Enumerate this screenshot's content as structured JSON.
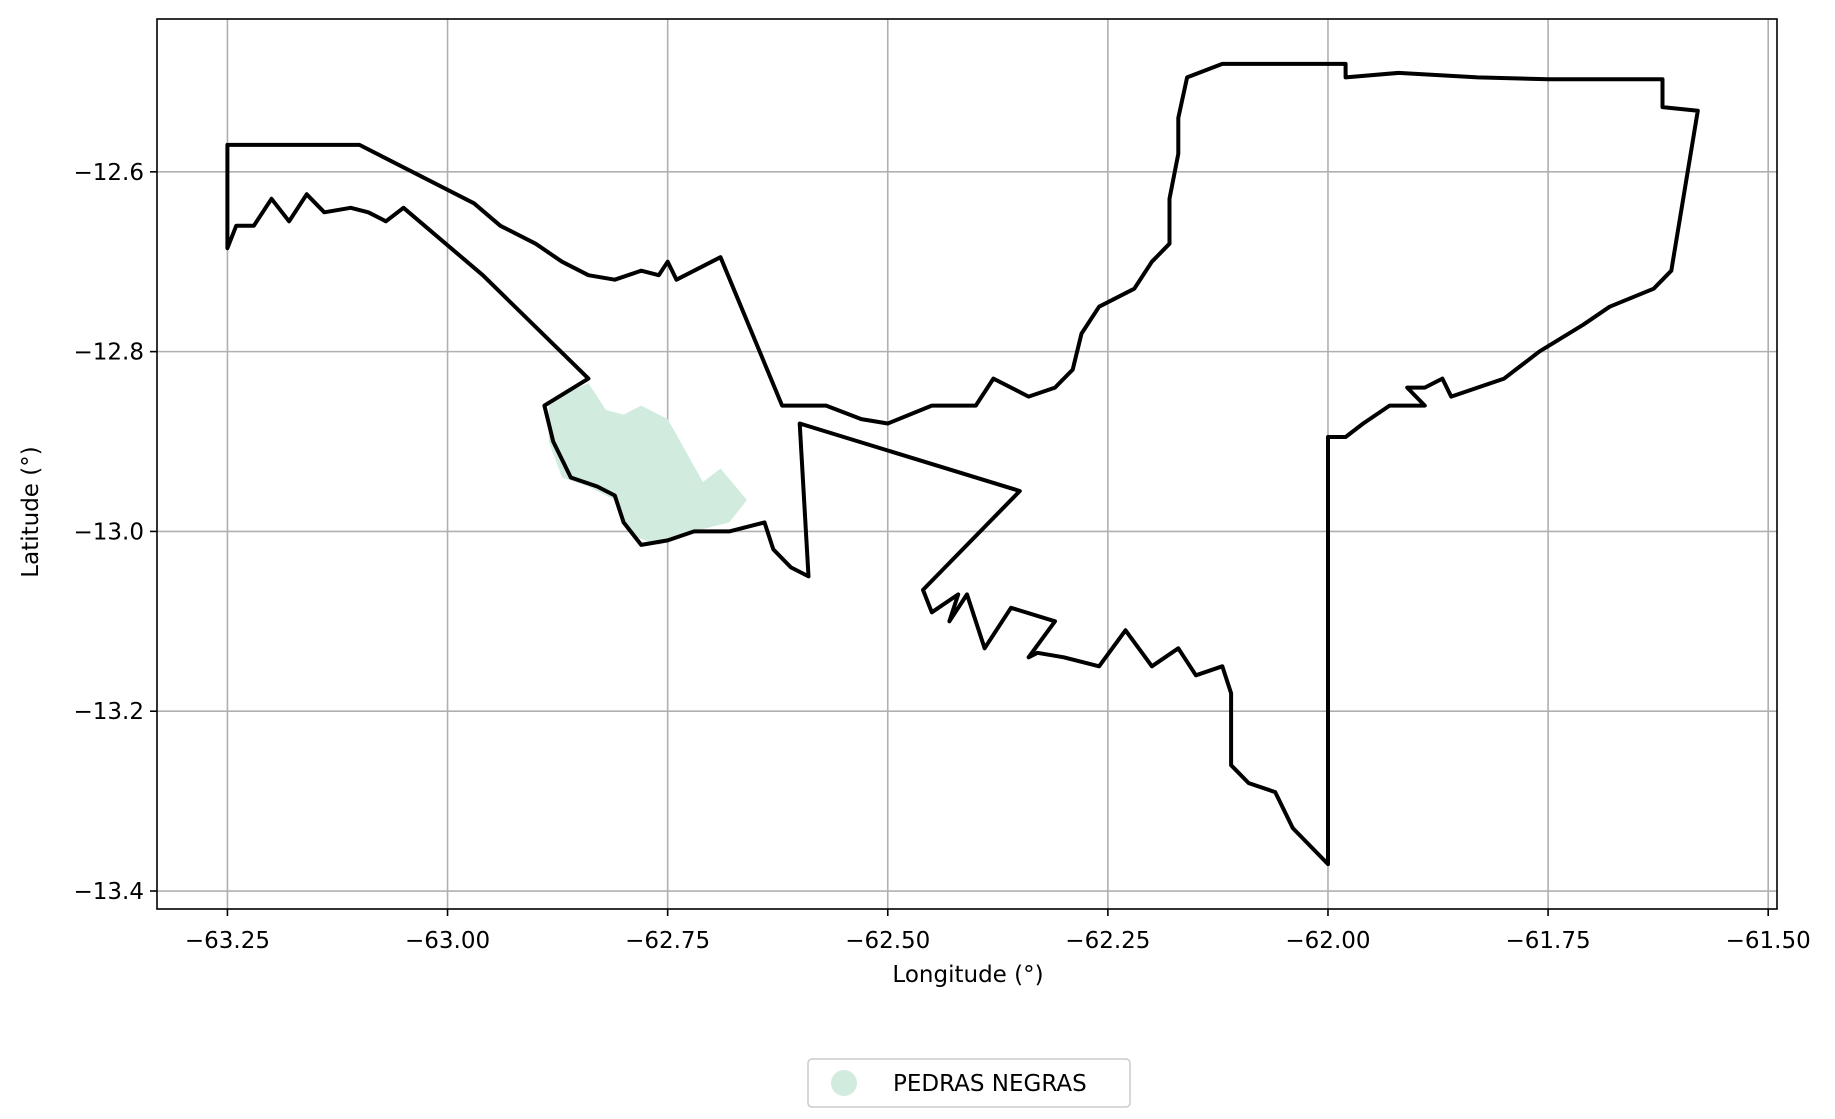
{
  "map": {
    "xlabel": "Longitude (°)",
    "ylabel": "Latitude (°)",
    "xlim": [
      -63.33,
      -61.49
    ],
    "ylim": [
      -13.42,
      -12.43
    ],
    "grid": true,
    "x_ticks": [
      {
        "value": -63.25,
        "label": "−63.25"
      },
      {
        "value": -63.0,
        "label": "−63.00"
      },
      {
        "value": -62.75,
        "label": "−62.75"
      },
      {
        "value": -62.5,
        "label": "−62.50"
      },
      {
        "value": -62.25,
        "label": "−62.25"
      },
      {
        "value": -62.0,
        "label": "−62.00"
      },
      {
        "value": -61.75,
        "label": "−61.75"
      },
      {
        "value": -61.5,
        "label": "−61.50"
      }
    ],
    "y_ticks": [
      {
        "value": -12.6,
        "label": "−12.6"
      },
      {
        "value": -12.8,
        "label": "−12.8"
      },
      {
        "value": -13.0,
        "label": "−13.0"
      },
      {
        "value": -13.2,
        "label": "−13.2"
      },
      {
        "value": -13.4,
        "label": "−13.4"
      }
    ],
    "outline_color": "#000000",
    "outline_coords": [
      [
        -63.25,
        -12.57
      ],
      [
        -63.1,
        -12.57
      ],
      [
        -62.97,
        -12.635
      ],
      [
        -62.94,
        -12.66
      ],
      [
        -62.9,
        -12.68
      ],
      [
        -62.87,
        -12.7
      ],
      [
        -62.84,
        -12.715
      ],
      [
        -62.81,
        -12.72
      ],
      [
        -62.78,
        -12.71
      ],
      [
        -62.76,
        -12.715
      ],
      [
        -62.75,
        -12.7
      ],
      [
        -62.74,
        -12.72
      ],
      [
        -62.69,
        -12.695
      ],
      [
        -62.62,
        -12.86
      ],
      [
        -62.57,
        -12.86
      ],
      [
        -62.53,
        -12.875
      ],
      [
        -62.5,
        -12.88
      ],
      [
        -62.45,
        -12.86
      ],
      [
        -62.4,
        -12.86
      ],
      [
        -62.38,
        -12.83
      ],
      [
        -62.34,
        -12.85
      ],
      [
        -62.31,
        -12.84
      ],
      [
        -62.29,
        -12.82
      ],
      [
        -62.28,
        -12.78
      ],
      [
        -62.26,
        -12.75
      ],
      [
        -62.22,
        -12.73
      ],
      [
        -62.2,
        -12.7
      ],
      [
        -62.18,
        -12.68
      ],
      [
        -62.18,
        -12.63
      ],
      [
        -62.17,
        -12.58
      ],
      [
        -62.17,
        -12.54
      ],
      [
        -62.16,
        -12.495
      ],
      [
        -62.12,
        -12.48
      ],
      [
        -62.02,
        -12.48
      ],
      [
        -61.98,
        -12.48
      ],
      [
        -61.98,
        -12.495
      ],
      [
        -61.92,
        -12.49
      ],
      [
        -61.83,
        -12.495
      ],
      [
        -61.75,
        -12.497
      ],
      [
        -61.62,
        -12.497
      ],
      [
        -61.62,
        -12.528
      ],
      [
        -61.58,
        -12.532
      ],
      [
        -61.61,
        -12.71
      ],
      [
        -61.63,
        -12.73
      ],
      [
        -61.68,
        -12.75
      ],
      [
        -61.71,
        -12.77
      ],
      [
        -61.76,
        -12.8
      ],
      [
        -61.8,
        -12.83
      ],
      [
        -61.86,
        -12.85
      ],
      [
        -61.87,
        -12.83
      ],
      [
        -61.89,
        -12.84
      ],
      [
        -61.91,
        -12.84
      ],
      [
        -61.89,
        -12.86
      ],
      [
        -61.93,
        -12.86
      ],
      [
        -61.96,
        -12.88
      ],
      [
        -61.98,
        -12.895
      ],
      [
        -62.0,
        -12.895
      ],
      [
        -62.0,
        -13.37
      ],
      [
        -62.04,
        -13.33
      ],
      [
        -62.06,
        -13.29
      ],
      [
        -62.09,
        -13.28
      ],
      [
        -62.11,
        -13.26
      ],
      [
        -62.11,
        -13.18
      ],
      [
        -62.12,
        -13.15
      ],
      [
        -62.15,
        -13.16
      ],
      [
        -62.17,
        -13.13
      ],
      [
        -62.2,
        -13.15
      ],
      [
        -62.23,
        -13.11
      ],
      [
        -62.26,
        -13.15
      ],
      [
        -62.3,
        -13.14
      ],
      [
        -62.33,
        -13.135
      ],
      [
        -62.34,
        -13.14
      ],
      [
        -62.31,
        -13.1
      ],
      [
        -62.36,
        -13.085
      ],
      [
        -62.39,
        -13.13
      ],
      [
        -62.41,
        -13.07
      ],
      [
        -62.43,
        -13.1
      ],
      [
        -62.42,
        -13.07
      ],
      [
        -62.45,
        -13.09
      ],
      [
        -62.46,
        -13.065
      ],
      [
        -62.35,
        -12.955
      ],
      [
        -62.6,
        -12.88
      ],
      [
        -62.59,
        -13.05
      ],
      [
        -62.61,
        -13.04
      ],
      [
        -62.63,
        -13.02
      ],
      [
        -62.64,
        -12.99
      ],
      [
        -62.68,
        -13.0
      ],
      [
        -62.72,
        -13.0
      ],
      [
        -62.75,
        -13.01
      ],
      [
        -62.78,
        -13.015
      ],
      [
        -62.8,
        -12.99
      ],
      [
        -62.81,
        -12.96
      ],
      [
        -62.83,
        -12.95
      ],
      [
        -62.86,
        -12.94
      ],
      [
        -62.88,
        -12.9
      ],
      [
        -62.89,
        -12.86
      ],
      [
        -62.84,
        -12.83
      ],
      [
        -62.96,
        -12.715
      ],
      [
        -63.05,
        -12.64
      ],
      [
        -63.07,
        -12.655
      ],
      [
        -63.09,
        -12.645
      ],
      [
        -63.11,
        -12.64
      ],
      [
        -63.14,
        -12.645
      ],
      [
        -63.16,
        -12.625
      ],
      [
        -63.18,
        -12.655
      ],
      [
        -63.2,
        -12.63
      ],
      [
        -63.22,
        -12.66
      ],
      [
        -63.24,
        -12.66
      ],
      [
        -63.25,
        -12.685
      ],
      [
        -63.25,
        -12.57
      ]
    ],
    "legend": {
      "placement": "bottom-center",
      "entries": [
        {
          "label": "PEDRAS NEGRAS",
          "color": "#d1ebde"
        }
      ]
    },
    "regions": [
      {
        "name": "PEDRAS NEGRAS",
        "color": "#d1ebde",
        "coords": [
          [
            -62.885,
            -12.855
          ],
          [
            -62.84,
            -12.835
          ],
          [
            -62.82,
            -12.865
          ],
          [
            -62.8,
            -12.87
          ],
          [
            -62.78,
            -12.86
          ],
          [
            -62.75,
            -12.875
          ],
          [
            -62.73,
            -12.91
          ],
          [
            -62.71,
            -12.945
          ],
          [
            -62.69,
            -12.93
          ],
          [
            -62.66,
            -12.965
          ],
          [
            -62.68,
            -12.99
          ],
          [
            -62.72,
            -13.0
          ],
          [
            -62.76,
            -13.015
          ],
          [
            -62.79,
            -13.005
          ],
          [
            -62.81,
            -12.965
          ],
          [
            -62.84,
            -12.95
          ],
          [
            -62.87,
            -12.94
          ],
          [
            -62.885,
            -12.9
          ]
        ]
      }
    ]
  }
}
